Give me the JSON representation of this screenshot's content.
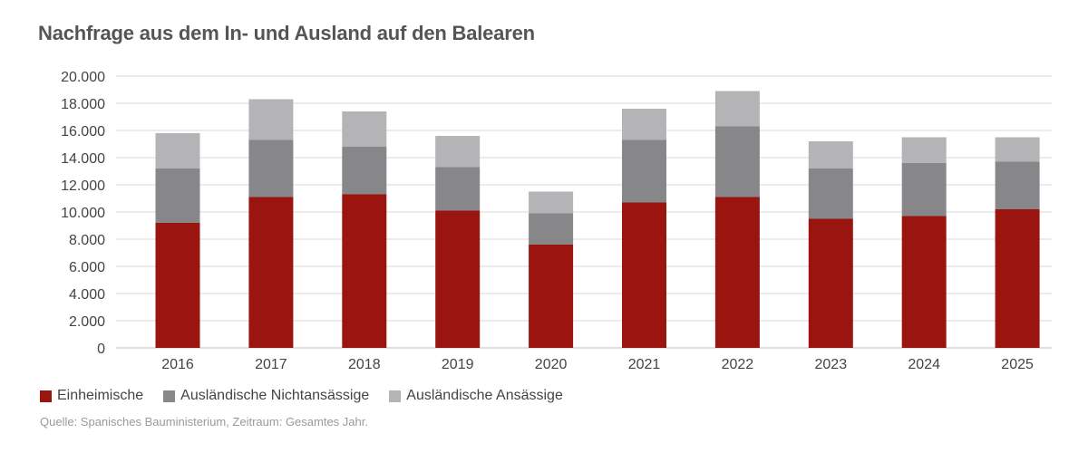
{
  "title": "Nachfrage aus dem In- und Ausland auf den Balearen",
  "source": "Quelle: Spanisches Bauministerium, Zeitraum: Gesamtes Jahr.",
  "colors": {
    "einheimische": "#9b1510",
    "nichtansaessige": "#87878a",
    "ansaessige": "#b4b4b6",
    "grid": "#d9d9d9"
  },
  "legend": [
    {
      "label": "Einheimische",
      "color": "#9b1510"
    },
    {
      "label": "Ausländische Nichtansässige",
      "color": "#87878a"
    },
    {
      "label": "Ausländische Ansässige",
      "color": "#b4b4b6"
    }
  ],
  "chart_data": {
    "type": "bar",
    "stacked": true,
    "title": "Nachfrage aus dem In- und Ausland auf den Balearen",
    "categories": [
      "2016",
      "2017",
      "2018",
      "2019",
      "2020",
      "2021",
      "2022",
      "2023",
      "2024",
      "2025"
    ],
    "series": [
      {
        "name": "Einheimische",
        "values": [
          9200,
          11100,
          11300,
          10100,
          7600,
          10700,
          11100,
          9500,
          9700,
          10200
        ]
      },
      {
        "name": "Ausländische Nichtansässige",
        "values": [
          4000,
          4200,
          3500,
          3200,
          2300,
          4600,
          5200,
          3700,
          3900,
          3500
        ]
      },
      {
        "name": "Ausländische Ansässige",
        "values": [
          2600,
          3000,
          2600,
          2300,
          1600,
          2300,
          2600,
          2000,
          1900,
          1800
        ]
      }
    ],
    "y_ticks": [
      "0",
      "2.000",
      "4.000",
      "6.000",
      "8.000",
      "10.000",
      "12.000",
      "14.000",
      "16.000",
      "18.000",
      "20.000"
    ],
    "ylim": [
      0,
      20000
    ],
    "grid": true,
    "legend_position": "bottom-left"
  }
}
